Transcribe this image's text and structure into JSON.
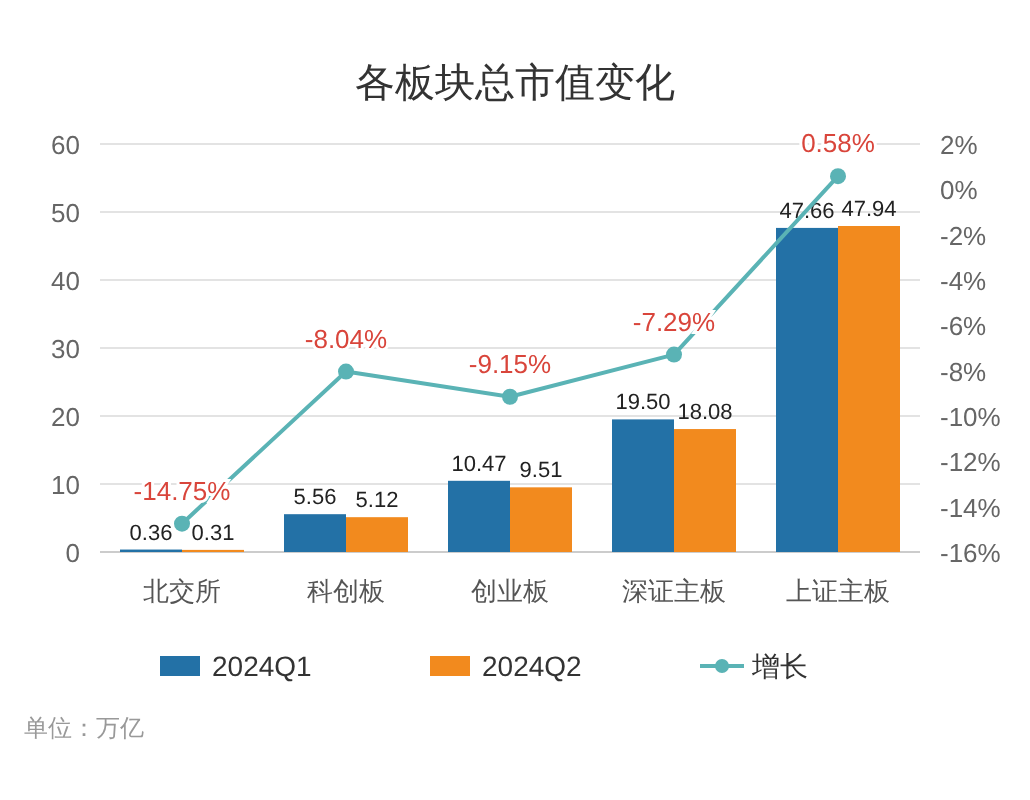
{
  "chart_data": {
    "type": "bar",
    "title": "各板块总市值变化",
    "categories": [
      "北交所",
      "科创板",
      "创业板",
      "深证主板",
      "上证主板"
    ],
    "series": [
      {
        "name": "2024Q1",
        "color": "#2371a6",
        "values": [
          0.36,
          5.56,
          10.47,
          19.5,
          47.66
        ],
        "value_labels": [
          "0.36",
          "5.56",
          "10.47",
          "19.50",
          "47.66"
        ]
      },
      {
        "name": "2024Q2",
        "color": "#f28a1e",
        "values": [
          0.31,
          5.12,
          9.51,
          18.08,
          47.94
        ],
        "value_labels": [
          "0.31",
          "5.12",
          "9.51",
          "18.08",
          "47.94"
        ]
      },
      {
        "name": "增长",
        "type": "line",
        "axis": "y2",
        "color": "#5ab3b5",
        "marker": "circle",
        "values": [
          -14.75,
          -8.04,
          -9.15,
          -7.29,
          0.58
        ],
        "value_labels": [
          "-14.75%",
          "-8.04%",
          "-9.15%",
          "-7.29%",
          "0.58%"
        ]
      }
    ],
    "ylim": [
      0,
      60
    ],
    "yticks": [
      0,
      10,
      20,
      30,
      40,
      50,
      60
    ],
    "y2lim": [
      -16,
      2
    ],
    "y2ticks": [
      {
        "value": 2,
        "label": "2%"
      },
      {
        "value": 0,
        "label": "0%"
      },
      {
        "value": -2,
        "label": "-2%"
      },
      {
        "value": -4,
        "label": "-4%"
      },
      {
        "value": -6,
        "label": "-6%"
      },
      {
        "value": -8,
        "label": "-8%"
      },
      {
        "value": -10,
        "label": "-10%"
      },
      {
        "value": -12,
        "label": "-12%"
      },
      {
        "value": -14,
        "label": "-14%"
      },
      {
        "value": -16,
        "label": "-16%"
      }
    ],
    "grid": "y",
    "legend": "bottom",
    "annotations": [
      "单位：万亿"
    ]
  }
}
